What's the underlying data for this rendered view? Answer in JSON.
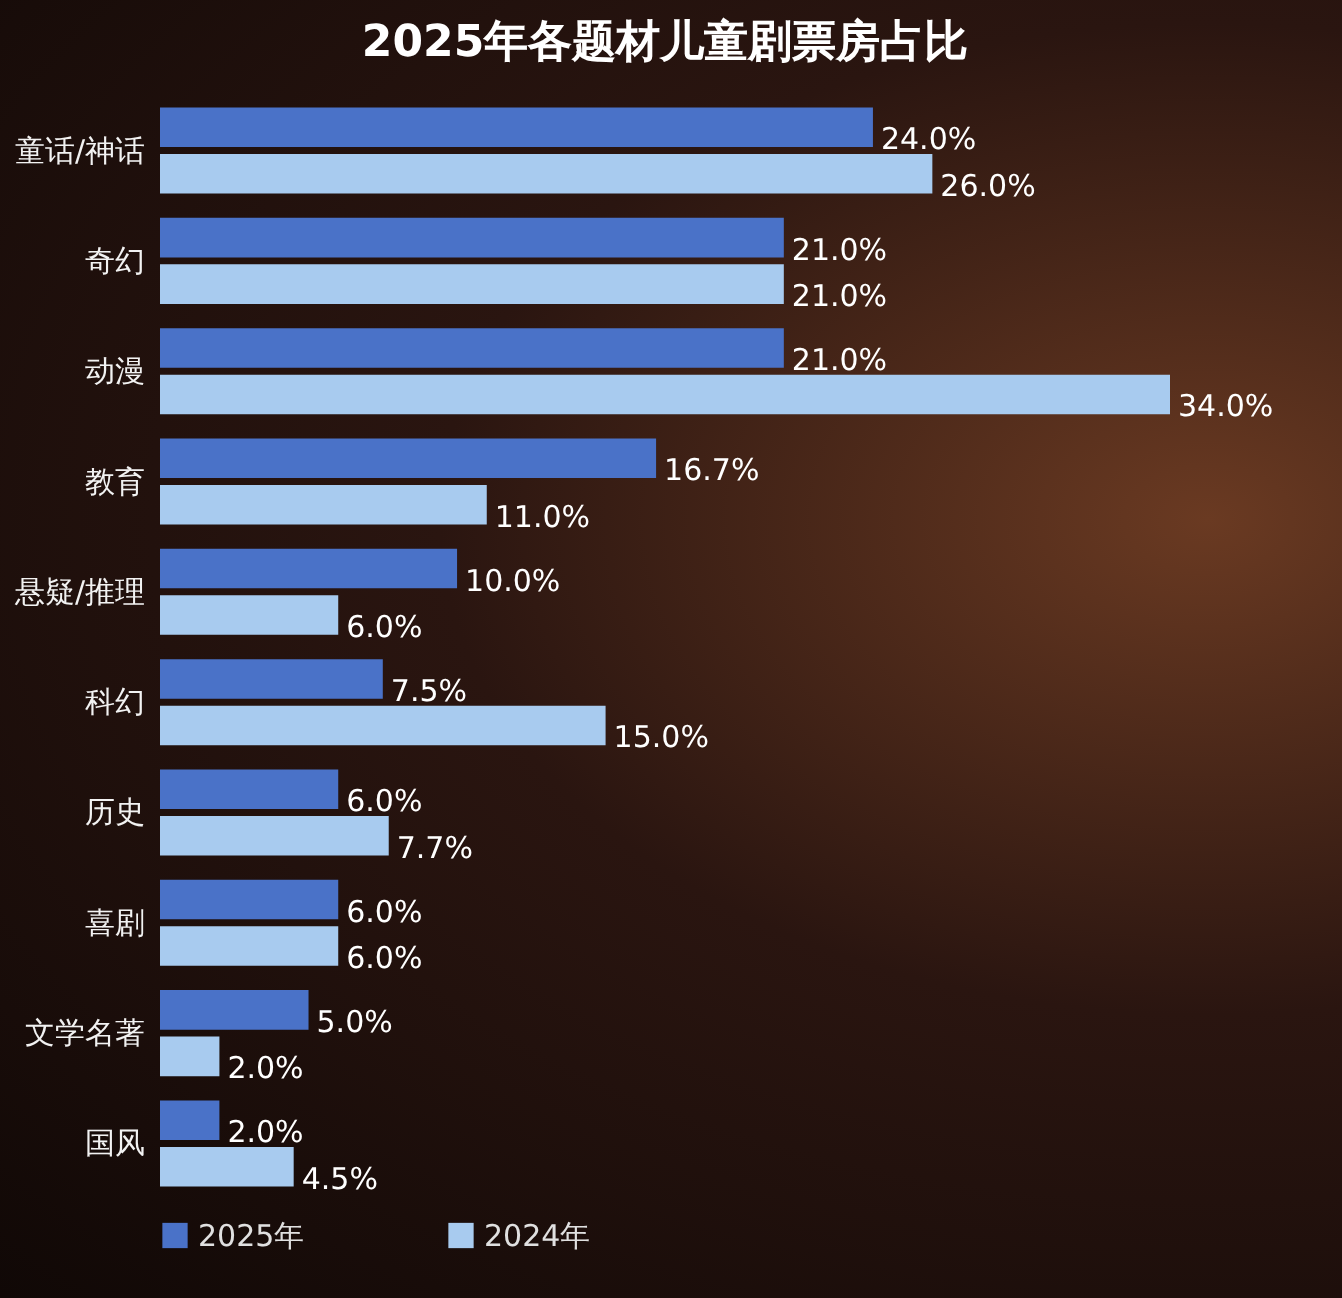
{
  "chart_data": {
    "type": "bar",
    "orientation": "horizontal",
    "title": "2025年各题材儿童剧票房占比",
    "categories": [
      "童话/神话",
      "奇幻",
      "动漫",
      "教育",
      "悬疑/推理",
      "科幻",
      "历史",
      "喜剧",
      "文学名著",
      "国风"
    ],
    "series": [
      {
        "name": "2025年",
        "color": "#4a72c8",
        "values": [
          24.0,
          21.0,
          21.0,
          16.7,
          10.0,
          7.5,
          6.0,
          6.0,
          5.0,
          2.0
        ],
        "value_labels": [
          "24.0%",
          "21.0%",
          "21.0%",
          "16.7%",
          "10.0%",
          "7.5%",
          "6.0%",
          "6.0%",
          "5.0%",
          "2.0%"
        ]
      },
      {
        "name": "2024年",
        "color": "#a8cbef",
        "values": [
          26.0,
          21.0,
          34.0,
          11.0,
          6.0,
          15.0,
          7.7,
          6.0,
          2.0,
          4.5
        ],
        "value_labels": [
          "26.0%",
          "21.0%",
          "34.0%",
          "11.0%",
          "6.0%",
          "15.0%",
          "7.7%",
          "6.0%",
          "2.0%",
          "4.5%"
        ]
      }
    ],
    "tick_labels": "y",
    "legend": "bottom left"
  }
}
